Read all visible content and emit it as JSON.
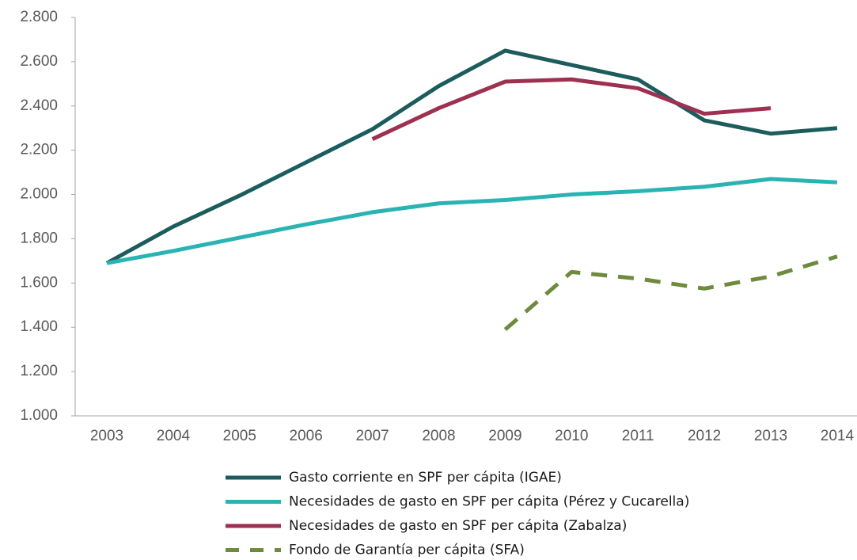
{
  "chart_data": {
    "type": "line",
    "categories": [
      "2003",
      "2004",
      "2005",
      "2006",
      "2007",
      "2008",
      "2009",
      "2010",
      "2011",
      "2012",
      "2013",
      "2014"
    ],
    "series": [
      {
        "name": "Gasto corriente en SPF per cápita (IGAE)",
        "color": "#1d5c5c",
        "line_style": "solid",
        "values": [
          1690,
          1855,
          1995,
          2145,
          2295,
          2490,
          2650,
          2585,
          2520,
          2335,
          2275,
          2300
        ]
      },
      {
        "name": "Necesidades de gasto en SPF per cápita (Pérez y Cucarella)",
        "color": "#2ab3b3",
        "line_style": "solid",
        "values": [
          1690,
          1745,
          1805,
          1865,
          1920,
          1960,
          1975,
          2000,
          2015,
          2035,
          2070,
          2055
        ]
      },
      {
        "name": "Necesidades de gasto en SPF per cápita (Zabalza)",
        "color": "#9e3050",
        "line_style": "solid",
        "values": [
          null,
          null,
          null,
          null,
          2250,
          2390,
          2510,
          2520,
          2480,
          2365,
          2390,
          null
        ]
      },
      {
        "name": "Fondo de Garantía per cápita (SFA)",
        "color": "#6e8b3d",
        "line_style": "dashed",
        "values": [
          null,
          null,
          null,
          null,
          null,
          null,
          1390,
          1650,
          1620,
          1575,
          1630,
          1720
        ]
      }
    ],
    "ylim": [
      1000,
      2800
    ],
    "yticks": [
      {
        "value": 1000,
        "label": "1.000"
      },
      {
        "value": 1200,
        "label": "1.200"
      },
      {
        "value": 1400,
        "label": "1.400"
      },
      {
        "value": 1600,
        "label": "1.600"
      },
      {
        "value": 1800,
        "label": "1.800"
      },
      {
        "value": 2000,
        "label": "2.000"
      },
      {
        "value": 2200,
        "label": "2.200"
      },
      {
        "value": 2400,
        "label": "2.400"
      },
      {
        "value": 2600,
        "label": "2.600"
      },
      {
        "value": 2800,
        "label": "2.800"
      }
    ],
    "grid": false,
    "legend": "bottom"
  }
}
